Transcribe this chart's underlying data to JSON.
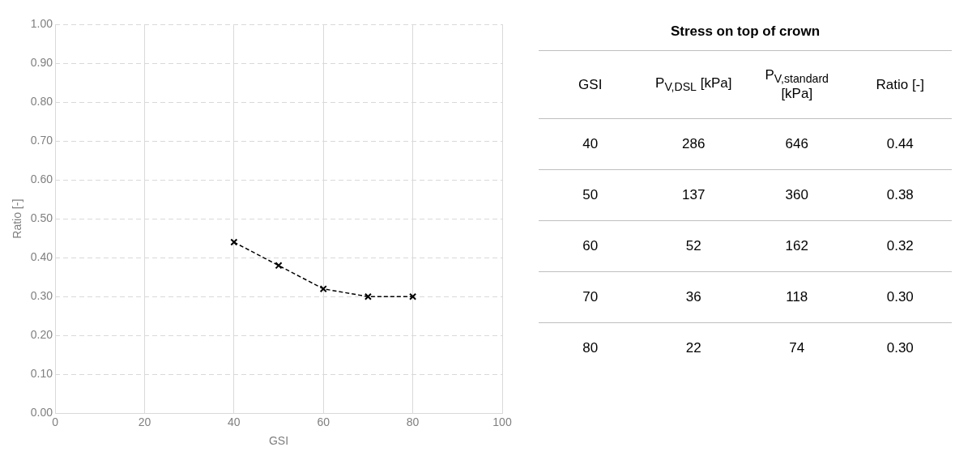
{
  "chart_data": [
    {
      "type": "line",
      "xlabel": "GSI",
      "ylabel": "Ratio [-]",
      "x": [
        40,
        50,
        60,
        70,
        80
      ],
      "series": [
        {
          "color": "#000000",
          "values": [
            0.44,
            0.38,
            0.32,
            0.3,
            0.3
          ]
        }
      ],
      "xlim": [
        0,
        100
      ],
      "xticks": [
        0,
        20,
        40,
        60,
        80,
        100
      ],
      "ylim": [
        0,
        1
      ],
      "yticks": [
        {
          "value": 0,
          "label": "0.00"
        },
        {
          "value": 0.1,
          "label": "0.10"
        },
        {
          "value": 0.2,
          "label": "0.20"
        },
        {
          "value": 0.3,
          "label": "0.30"
        },
        {
          "value": 0.4,
          "label": "0.40"
        },
        {
          "value": 0.5,
          "label": "0.50"
        },
        {
          "value": 0.6,
          "label": "0.60"
        },
        {
          "value": 0.7,
          "label": "0.70"
        },
        {
          "value": 0.8,
          "label": "0.80"
        },
        {
          "value": 0.9,
          "label": "0.90"
        },
        {
          "value": 1,
          "label": "1.00"
        }
      ],
      "grid": true,
      "marker": "cross",
      "line_style": "dashed"
    },
    {
      "type": "heatmap",
      "title": "Stress on top of crown",
      "ylabel": "GSI",
      "data_labels": true,
      "categories": [
        "P$_{V,DSL}$ [kPa]",
        "P$_{V,standard}$ [kPa]",
        "Ratio [-]"
      ],
      "y_categories": [
        "40",
        "50",
        "60",
        "70",
        "80"
      ],
      "cells": [
        [
          286,
          646,
          0.44
        ],
        [
          137,
          360,
          0.38
        ],
        [
          52,
          162,
          0.32
        ],
        [
          36,
          118,
          0.3
        ],
        [
          22,
          74,
          0.3
        ]
      ],
      "cell_labels": [
        [
          "286",
          "646",
          "0.44"
        ],
        [
          "137",
          "360",
          "0.38"
        ],
        [
          "52",
          "162",
          "0.32"
        ],
        [
          "36",
          "118",
          "0.30"
        ],
        [
          "22",
          "74",
          "0.30"
        ]
      ]
    }
  ]
}
